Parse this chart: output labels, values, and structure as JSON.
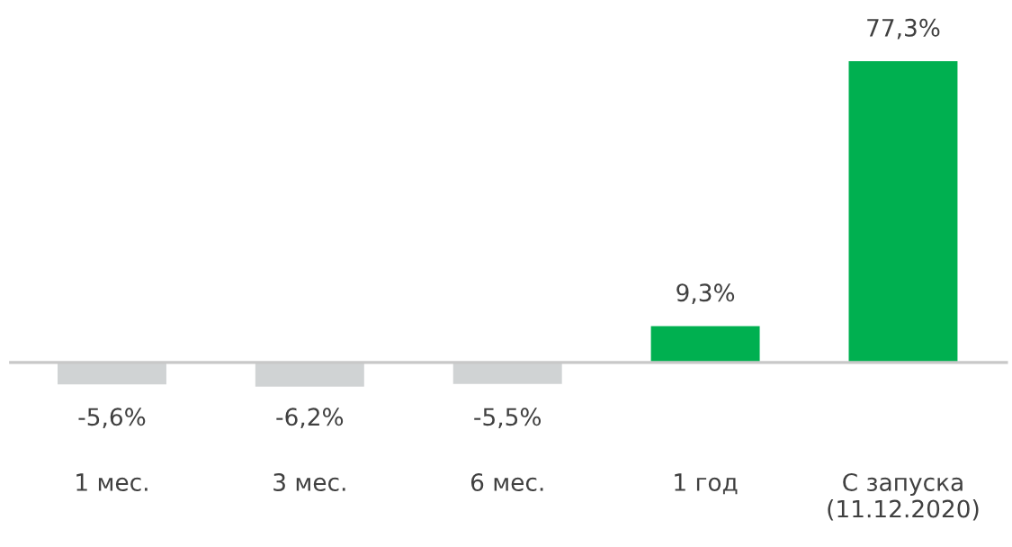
{
  "chart_data": {
    "type": "bar",
    "categories": [
      "1 мес.",
      "3 мес.",
      "6 мес.",
      "1 год",
      "С запуска\n(11.12.2020)"
    ],
    "values": [
      -5.6,
      -6.2,
      -5.5,
      9.3,
      77.3
    ],
    "colors": [
      "#d0d3d4",
      "#d0d3d4",
      "#d0d3d4",
      "#00b050",
      "#00b050"
    ],
    "value_labels": [
      "-5,6%",
      "-6,2%",
      "-5,5%",
      "9,3%",
      "77,3%"
    ]
  }
}
